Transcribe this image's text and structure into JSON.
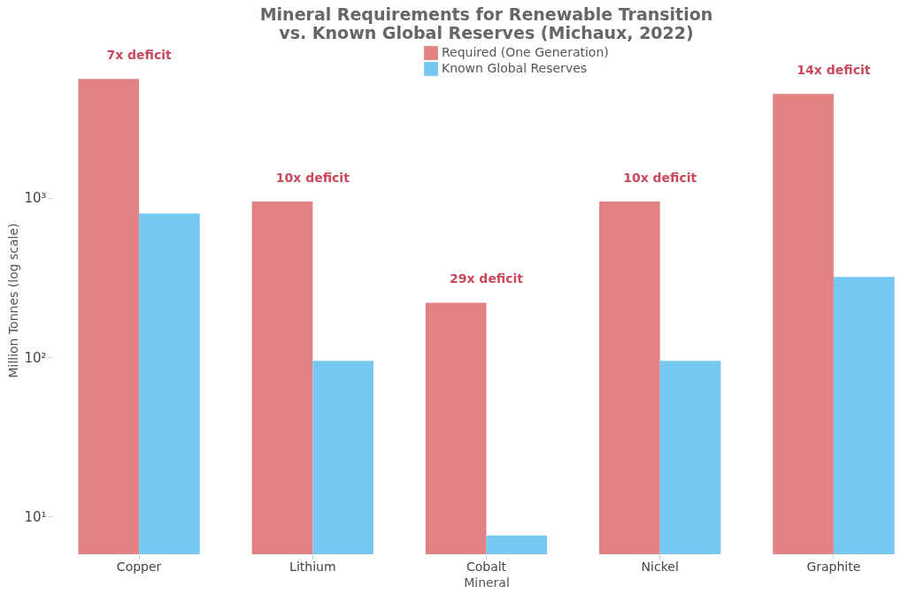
{
  "chart_data": {
    "type": "bar",
    "title": "Mineral Requirements for Renewable Transition\nvs. Known Global Reserves (Michaux, 2022)",
    "xlabel": "Mineral",
    "ylabel": "Million Tonnes (log scale)",
    "categories": [
      "Copper",
      "Lithium",
      "Cobalt",
      "Nickel",
      "Graphite"
    ],
    "series": [
      {
        "name": "Required (One Generation)",
        "color": "#e07b7b",
        "values": [
          5600,
          950,
          220,
          950,
          4500
        ]
      },
      {
        "name": "Known Global Reserves",
        "color": "#6ec6f0",
        "values": [
          800,
          95,
          7.6,
          95,
          320
        ]
      }
    ],
    "log": true,
    "ylim": [
      5.8,
      9000
    ],
    "yticks": [
      {
        "value": 10,
        "label": "10¹"
      },
      {
        "value": 100,
        "label": "10²"
      },
      {
        "value": 1000,
        "label": "10³"
      }
    ],
    "annotations": [
      {
        "text": "7x deficit",
        "x": "Copper",
        "y": 5600
      },
      {
        "text": "10x deficit",
        "x": "Lithium",
        "y": 950
      },
      {
        "text": "29x deficit",
        "x": "Cobalt",
        "y": 220
      },
      {
        "text": "10x deficit",
        "x": "Nickel",
        "y": 950
      },
      {
        "text": "14x deficit",
        "x": "Graphite",
        "y": 4500
      }
    ],
    "legend": "top",
    "grid": false
  }
}
